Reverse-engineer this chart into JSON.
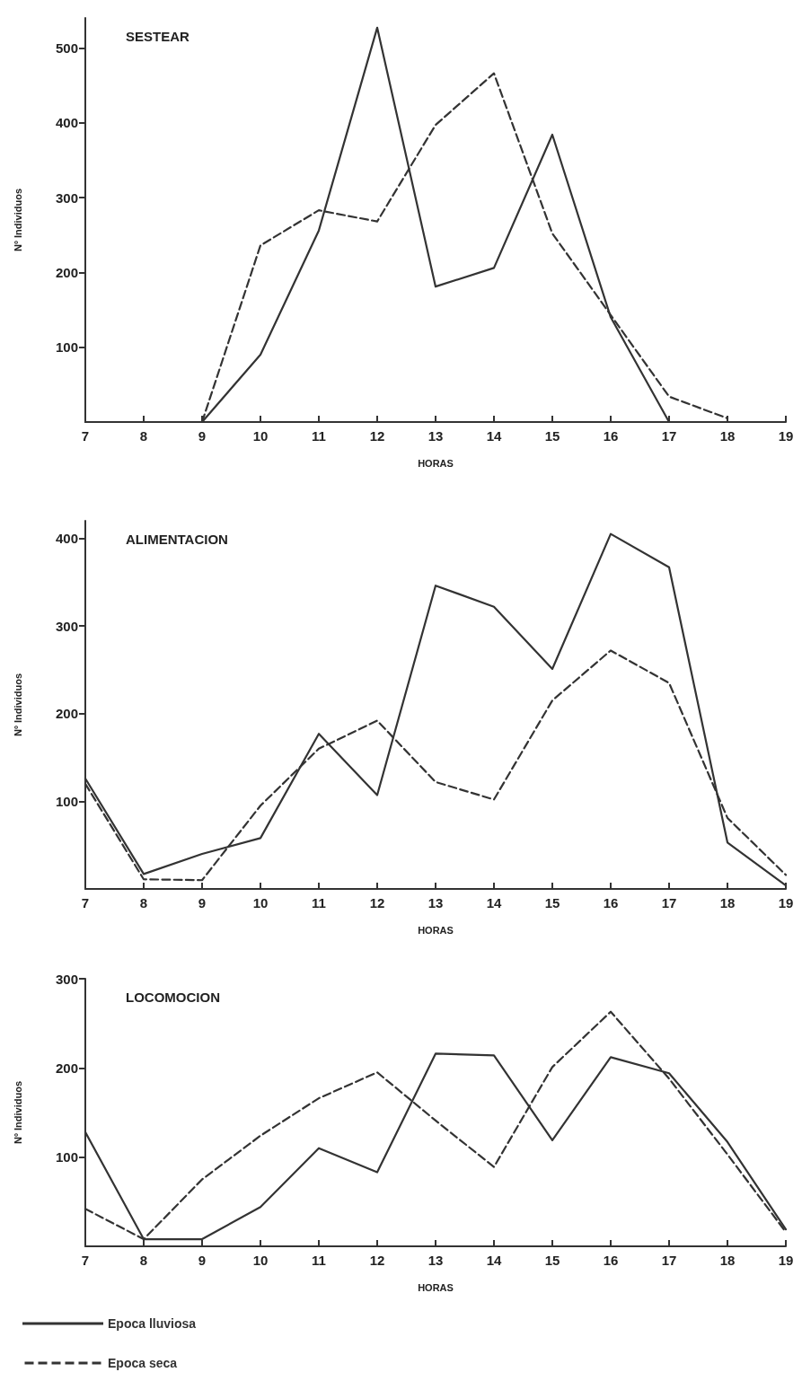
{
  "chart_data": [
    {
      "type": "line",
      "title": "SESTEAR",
      "xlabel": "HORAS",
      "ylabel": "Nº Individuos",
      "x": [
        7,
        8,
        9,
        10,
        11,
        12,
        13,
        14,
        15,
        16,
        17,
        18
      ],
      "xlim": [
        7,
        19
      ],
      "xticks": [
        7,
        8,
        9,
        10,
        11,
        12,
        13,
        14,
        15,
        16,
        17,
        18,
        19
      ],
      "ylim": [
        0,
        540
      ],
      "yticks": [
        100,
        200,
        300,
        400,
        500
      ],
      "grid": false,
      "legend": false,
      "marker": "none",
      "series": [
        {
          "color": "#333333",
          "line_style": "solid",
          "values": [
            0,
            0,
            0,
            90,
            256,
            527,
            181,
            206,
            384,
            140,
            0,
            null
          ]
        },
        {
          "color": "#333333",
          "line_style": "dashed",
          "values": [
            null,
            null,
            0,
            236,
            283,
            268,
            397,
            466,
            252,
            143,
            34,
            5
          ]
        }
      ]
    },
    {
      "type": "line",
      "title": "ALIMENTACION",
      "xlabel": "HORAS",
      "ylabel": "Nº Individuos",
      "x": [
        7,
        8,
        9,
        10,
        11,
        12,
        13,
        14,
        15,
        16,
        17,
        18,
        19
      ],
      "xlim": [
        7,
        19
      ],
      "xticks": [
        7,
        8,
        9,
        10,
        11,
        12,
        13,
        14,
        15,
        16,
        17,
        18,
        19
      ],
      "ylim": [
        0,
        420
      ],
      "yticks": [
        100,
        200,
        300,
        400
      ],
      "grid": false,
      "legend": false,
      "marker": "none",
      "series": [
        {
          "color": "#333333",
          "line_style": "solid",
          "values": [
            126,
            17,
            40,
            58,
            177,
            107,
            346,
            322,
            251,
            405,
            367,
            53,
            4
          ]
        },
        {
          "color": "#333333",
          "line_style": "dashed",
          "values": [
            120,
            11,
            10,
            95,
            160,
            192,
            122,
            102,
            215,
            272,
            235,
            81,
            16
          ]
        }
      ]
    },
    {
      "type": "line",
      "title": "LOCOMOCION",
      "xlabel": "HORAS",
      "ylabel": "Nº Individuos",
      "x": [
        7,
        8,
        9,
        10,
        11,
        12,
        13,
        14,
        15,
        16,
        17,
        18,
        19
      ],
      "xlim": [
        7,
        19
      ],
      "xticks": [
        7,
        8,
        9,
        10,
        11,
        12,
        13,
        14,
        15,
        16,
        17,
        18,
        19
      ],
      "ylim": [
        0,
        300
      ],
      "yticks": [
        100,
        200,
        300
      ],
      "grid": false,
      "legend": "bottom left",
      "marker": "none",
      "series": [
        {
          "name": "Epoca lluviosa",
          "color": "#333333",
          "line_style": "solid",
          "values": [
            128,
            8,
            8,
            44,
            110,
            83,
            216,
            214,
            119,
            212,
            194,
            117,
            19
          ]
        },
        {
          "name": "Epoca seca",
          "color": "#333333",
          "line_style": "dashed",
          "values": [
            42,
            8,
            75,
            124,
            166,
            195,
            141,
            89,
            201,
            263,
            188,
            103,
            16
          ]
        }
      ]
    }
  ]
}
